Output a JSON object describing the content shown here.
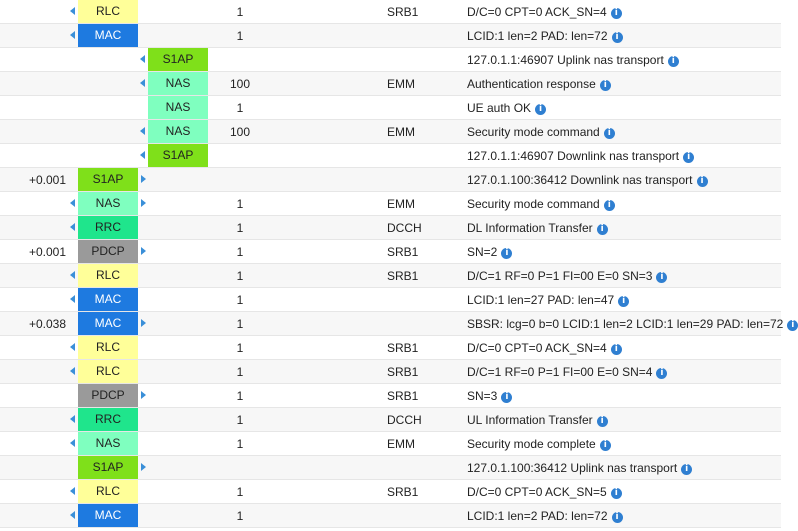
{
  "colors": {
    "RLC": "#ffff99",
    "MAC": "#1e7ae0",
    "S1AP": "#7fe01a",
    "NAS": "#7fffbf",
    "RRC": "#1fe58c",
    "PDCP": "#9a9a9a"
  },
  "rows": [
    {
      "time": "",
      "layer": "RLC",
      "lane": "ue",
      "dir": "left",
      "count": "1",
      "channel": "SRB1",
      "message": "D/C=0 CPT=0 ACK_SN=4"
    },
    {
      "time": "",
      "layer": "MAC",
      "lane": "ue",
      "dir": "left",
      "count": "1",
      "channel": "",
      "message": "LCID:1 len=2 PAD: len=72"
    },
    {
      "time": "",
      "layer": "S1AP",
      "lane": "mme",
      "dir": "left",
      "count": "",
      "channel": "",
      "message": "127.0.1.1:46907 Uplink nas transport"
    },
    {
      "time": "",
      "layer": "NAS",
      "lane": "mme",
      "dir": "left",
      "count": "100",
      "channel": "EMM",
      "message": "Authentication response"
    },
    {
      "time": "",
      "layer": "NAS",
      "lane": "mme",
      "dir": "none",
      "count": "1",
      "channel": "",
      "message": "UE auth OK"
    },
    {
      "time": "",
      "layer": "NAS",
      "lane": "mme",
      "dir": "left",
      "count": "100",
      "channel": "EMM",
      "message": "Security mode command"
    },
    {
      "time": "",
      "layer": "S1AP",
      "lane": "mme",
      "dir": "left",
      "count": "",
      "channel": "",
      "message": "127.0.1.1:46907 Downlink nas transport"
    },
    {
      "time": "+0.001",
      "layer": "S1AP",
      "lane": "enb",
      "dir": "right",
      "count": "",
      "channel": "",
      "message": "127.0.1.100:36412 Downlink nas transport"
    },
    {
      "time": "",
      "layer": "NAS",
      "lane": "enb",
      "dir": "both",
      "count": "1",
      "channel": "EMM",
      "message": "Security mode command"
    },
    {
      "time": "",
      "layer": "RRC",
      "lane": "ue",
      "dir": "left",
      "count": "1",
      "channel": "DCCH",
      "message": "DL Information Transfer"
    },
    {
      "time": "+0.001",
      "layer": "PDCP",
      "lane": "enb",
      "dir": "right",
      "count": "1",
      "channel": "SRB1",
      "message": "SN=2"
    },
    {
      "time": "",
      "layer": "RLC",
      "lane": "ue",
      "dir": "left",
      "count": "1",
      "channel": "SRB1",
      "message": "D/C=1 RF=0 P=1 FI=00 E=0 SN=3"
    },
    {
      "time": "",
      "layer": "MAC",
      "lane": "ue",
      "dir": "left",
      "count": "1",
      "channel": "",
      "message": "LCID:1 len=27 PAD: len=47"
    },
    {
      "time": "+0.038",
      "layer": "MAC",
      "lane": "ue",
      "dir": "right",
      "count": "1",
      "channel": "",
      "message": "SBSR: lcg=0 b=0 LCID:1 len=2 LCID:1 len=29 PAD: len=72"
    },
    {
      "time": "",
      "layer": "RLC",
      "lane": "ue",
      "dir": "left",
      "count": "1",
      "channel": "SRB1",
      "message": "D/C=0 CPT=0 ACK_SN=4"
    },
    {
      "time": "",
      "layer": "RLC",
      "lane": "ue",
      "dir": "left",
      "count": "1",
      "channel": "SRB1",
      "message": "D/C=1 RF=0 P=1 FI=00 E=0 SN=4"
    },
    {
      "time": "",
      "layer": "PDCP",
      "lane": "ue",
      "dir": "right",
      "count": "1",
      "channel": "SRB1",
      "message": "SN=3"
    },
    {
      "time": "",
      "layer": "RRC",
      "lane": "ue",
      "dir": "left",
      "count": "1",
      "channel": "DCCH",
      "message": "UL Information Transfer"
    },
    {
      "time": "",
      "layer": "NAS",
      "lane": "ue",
      "dir": "left",
      "count": "1",
      "channel": "EMM",
      "message": "Security mode complete"
    },
    {
      "time": "",
      "layer": "S1AP",
      "lane": "enb",
      "dir": "right",
      "count": "",
      "channel": "",
      "message": "127.0.1.100:36412 Uplink nas transport"
    },
    {
      "time": "",
      "layer": "RLC",
      "lane": "ue",
      "dir": "left",
      "count": "1",
      "channel": "SRB1",
      "message": "D/C=0 CPT=0 ACK_SN=5"
    },
    {
      "time": "",
      "layer": "MAC",
      "lane": "ue",
      "dir": "left",
      "count": "1",
      "channel": "",
      "message": "LCID:1 len=2 PAD: len=72"
    }
  ]
}
